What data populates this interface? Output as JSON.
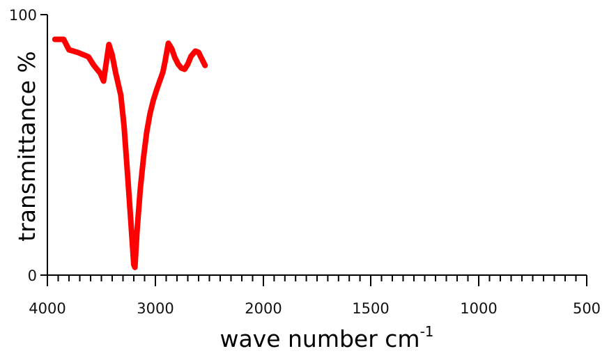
{
  "chart_data": {
    "type": "line",
    "xlabel": "wave number cm",
    "xlabel_superscript": "-1",
    "ylabel": "transmittance %",
    "x_reversed": true,
    "xlim": [
      4000,
      500
    ],
    "ylim": [
      0,
      100
    ],
    "x_ticks": [
      4000,
      3000,
      2000,
      1500,
      1000,
      500
    ],
    "x_tick_labels": [
      "4000",
      "3000",
      "2000",
      "1500",
      "1000",
      "500"
    ],
    "y_ticks": [
      0,
      100
    ],
    "y_tick_labels": [
      "0",
      "100"
    ],
    "grid": false,
    "legend": "none",
    "series": [
      {
        "color": "#ff0000",
        "x": [
          3930,
          3850,
          3800,
          3720,
          3620,
          3570,
          3530,
          3510,
          3480,
          3430,
          3400,
          3370,
          3320,
          3290,
          3260,
          3230,
          3200,
          3190,
          3170,
          3140,
          3110,
          3080,
          3050,
          3020,
          2990,
          2960,
          2930,
          2910,
          2880,
          2850,
          2820,
          2790,
          2760,
          2730,
          2700,
          2670,
          2630,
          2600,
          2570,
          2540
        ],
        "y": [
          90.5,
          90.5,
          86.5,
          85.5,
          83.8,
          80.5,
          78.5,
          77.5,
          74.5,
          88.5,
          84.5,
          78,
          69,
          57,
          40,
          22,
          4,
          3,
          17,
          33,
          45,
          55,
          62,
          67,
          71,
          74.5,
          78,
          82,
          89,
          87,
          83.5,
          81,
          79.5,
          79,
          81,
          84,
          86,
          85.5,
          83,
          80.5
        ]
      }
    ]
  }
}
